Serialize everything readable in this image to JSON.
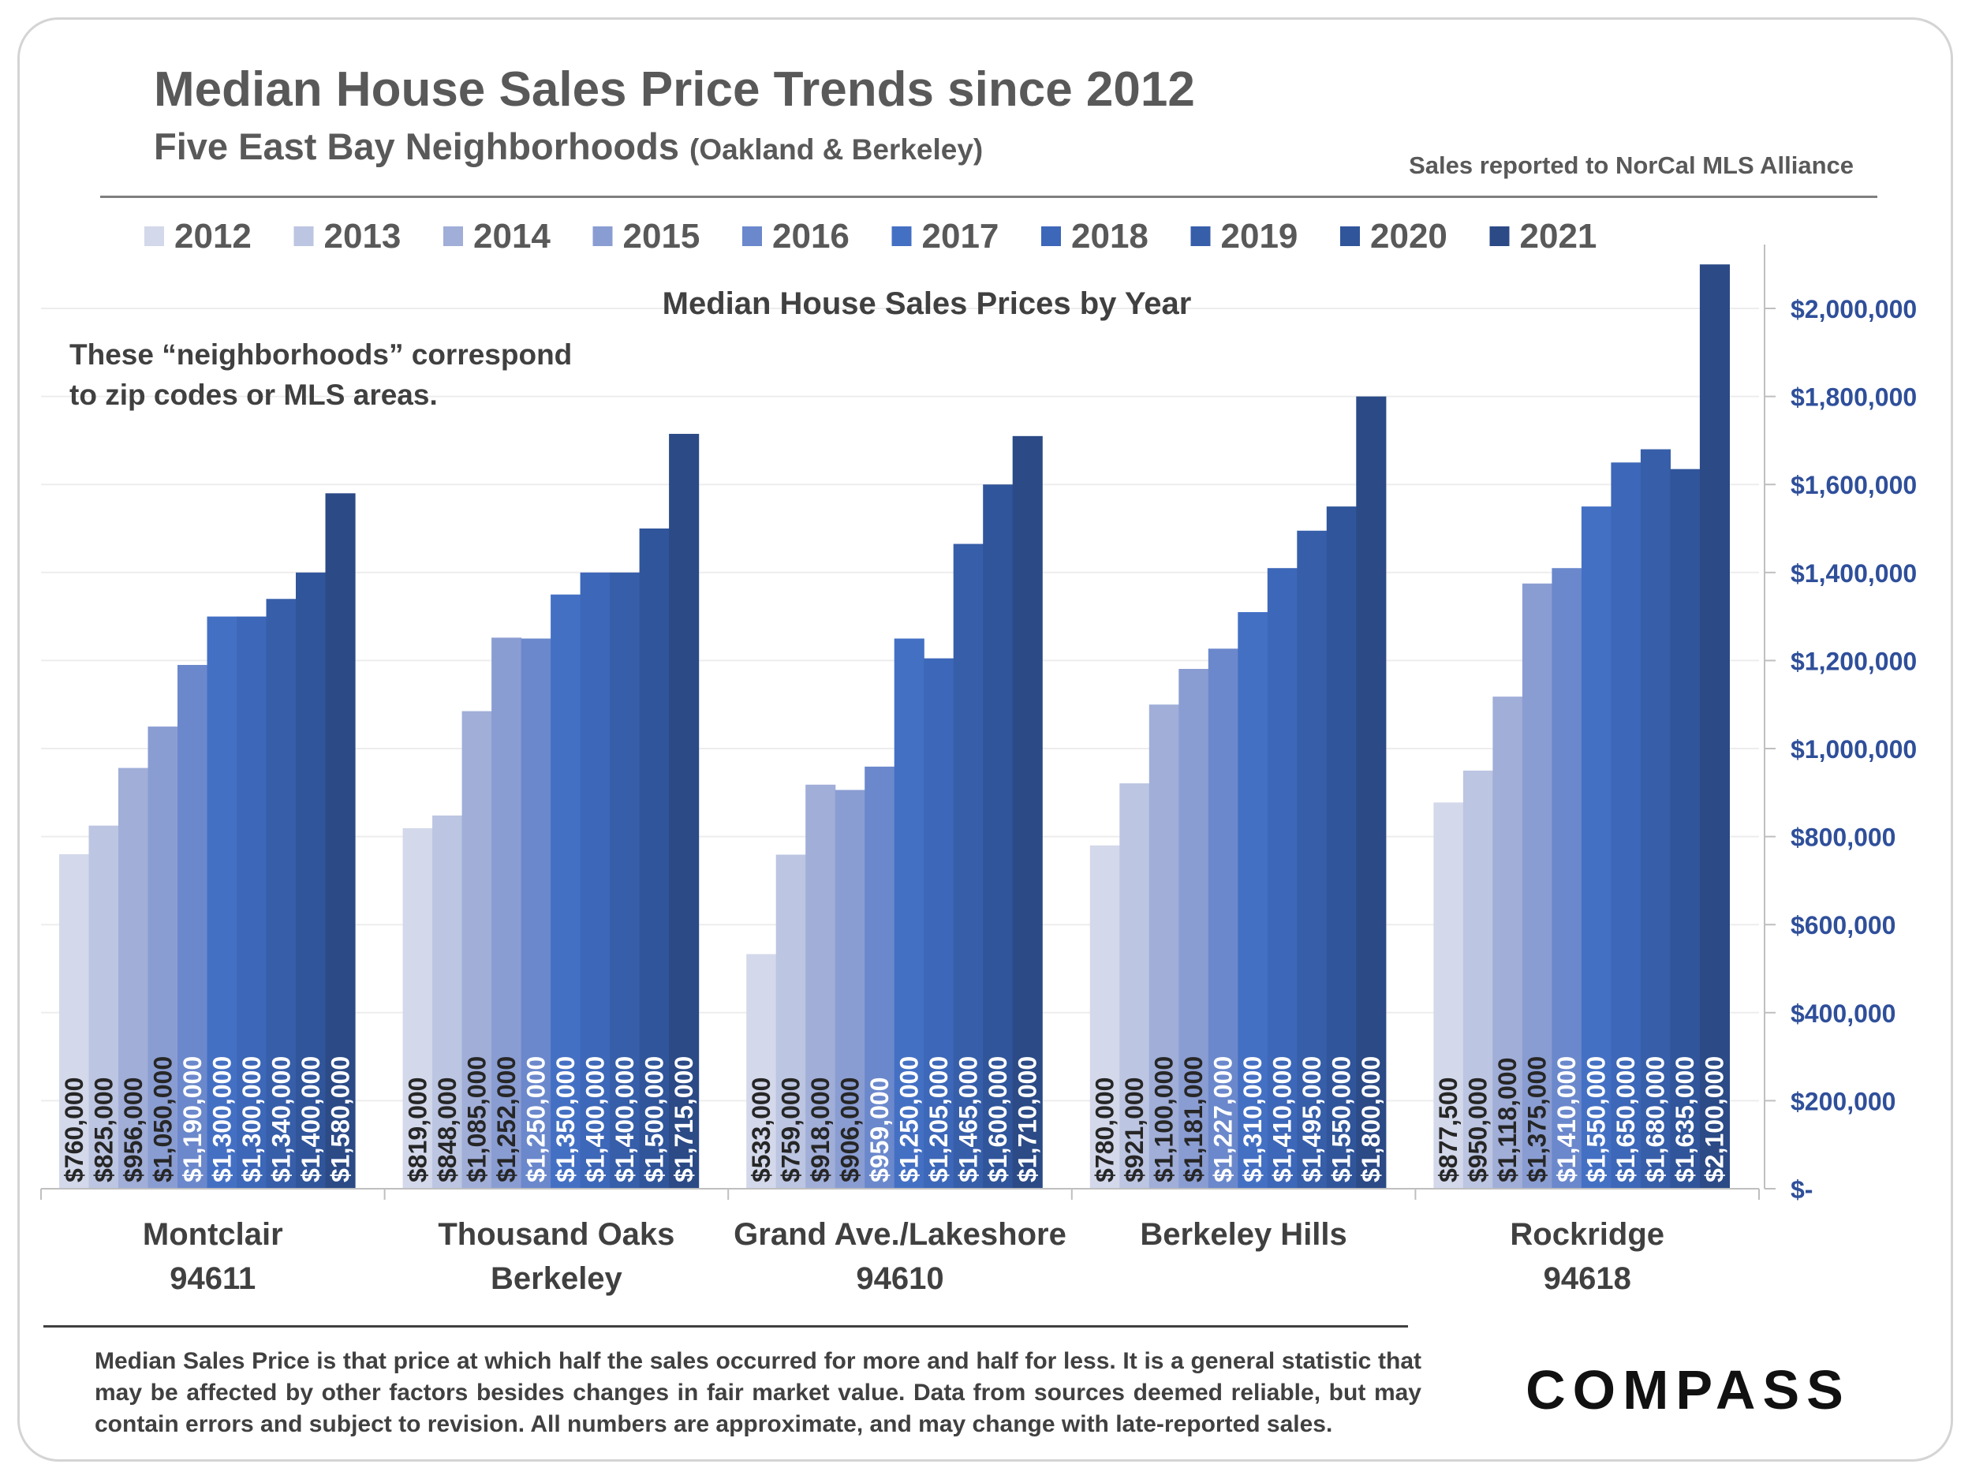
{
  "title": "Median House Sales Price Trends since 2012",
  "subtitle_main": "Five East Bay Neighborhoods",
  "subtitle_paren": "(Oakland & Berkeley)",
  "source_note": "Sales reported to NorCal MLS Alliance",
  "side_note_line1": "These  “neighborhoods” correspond",
  "side_note_line2": "to zip codes or MLS areas.",
  "footnote": "Median Sales Price is that price at which half the sales occurred for more and half for less. It is a general statistic that may be affected by other factors besides changes in fair market value. Data from sources deemed reliable, but may contain errors and subject to revision.  All numbers are approximate, and may change with late-reported sales.",
  "logo_text": "COMPASS",
  "chart_data": {
    "type": "bar",
    "title": "Median House Sales Prices by Year",
    "categories": [
      [
        "Montclair",
        "94611"
      ],
      [
        "Thousand Oaks",
        "Berkeley"
      ],
      [
        "Grand Ave./Lakeshore",
        "94610"
      ],
      [
        "Berkeley Hills"
      ],
      [
        "Rockridge",
        "94618"
      ]
    ],
    "series": [
      {
        "name": "2012",
        "color": "#d3d8ea",
        "values": [
          760000,
          819000,
          533000,
          780000,
          877500
        ],
        "labels": [
          "$760,000",
          "$819,000",
          "$533,000",
          "$780,000",
          "$877,500"
        ]
      },
      {
        "name": "2013",
        "color": "#bcc5e1",
        "values": [
          825000,
          848000,
          759000,
          921000,
          950000
        ],
        "labels": [
          "$825,000",
          "$848,000",
          "$759,000",
          "$921,000",
          "$950,000"
        ]
      },
      {
        "name": "2014",
        "color": "#a0aed8",
        "values": [
          956000,
          1085000,
          918000,
          1100000,
          1118000
        ],
        "labels": [
          "$956,000",
          "$1,085,000",
          "$918,000",
          "$1,100,000",
          "$1,118,000"
        ]
      },
      {
        "name": "2015",
        "color": "#8a9dd2",
        "values": [
          1050000,
          1252000,
          906000,
          1181000,
          1375000
        ],
        "labels": [
          "$1,050,000",
          "$1,252,000",
          "$906,000",
          "$1,181,000",
          "$1,375,000"
        ]
      },
      {
        "name": "2016",
        "color": "#6b88cc",
        "values": [
          1190000,
          1250000,
          959000,
          1227000,
          1410000
        ],
        "labels": [
          "$1,190,000",
          "$1,250,000",
          "$959,000",
          "$1,227,000",
          "$1,410,000"
        ]
      },
      {
        "name": "2017",
        "color": "#4470c4",
        "values": [
          1300000,
          1350000,
          1250000,
          1310000,
          1550000
        ],
        "labels": [
          "$1,300,000",
          "$1,350,000",
          "$1,250,000",
          "$1,310,000",
          "$1,550,000"
        ]
      },
      {
        "name": "2018",
        "color": "#3d67b8",
        "values": [
          1300000,
          1400000,
          1205000,
          1410000,
          1650000
        ],
        "labels": [
          "$1,300,000",
          "$1,400,000",
          "$1,205,000",
          "$1,410,000",
          "$1,650,000"
        ]
      },
      {
        "name": "2019",
        "color": "#375ea9",
        "values": [
          1340000,
          1400000,
          1465000,
          1495000,
          1680000
        ],
        "labels": [
          "$1,340,000",
          "$1,400,000",
          "$1,465,000",
          "$1,495,000",
          "$1,680,000"
        ]
      },
      {
        "name": "2020",
        "color": "#30559a",
        "values": [
          1400000,
          1500000,
          1600000,
          1550000,
          1635000
        ],
        "labels": [
          "$1,400,000",
          "$1,500,000",
          "$1,600,000",
          "$1,550,000",
          "$1,635,000"
        ]
      },
      {
        "name": "2021",
        "color": "#2b4a86",
        "values": [
          1580000,
          1715000,
          1710000,
          1800000,
          2100000
        ],
        "labels": [
          "$1,580,000",
          "$1,715,000",
          "$1,710,000",
          "$1,800,000",
          "$2,100,000"
        ]
      }
    ],
    "ylim": [
      0,
      2100000
    ],
    "yticks": [
      0,
      200000,
      400000,
      600000,
      800000,
      1000000,
      1200000,
      1400000,
      1600000,
      1800000,
      2000000
    ],
    "ytick_labels": [
      "$-",
      "$200,000",
      "$400,000",
      "$600,000",
      "$800,000",
      "$1,000,000",
      "$1,200,000",
      "$1,400,000",
      "$1,600,000",
      "$1,800,000",
      "$2,000,000"
    ],
    "y_axis_side": "right",
    "legend_position": "top",
    "grid": true,
    "axis_color": "#2f4f9a"
  }
}
